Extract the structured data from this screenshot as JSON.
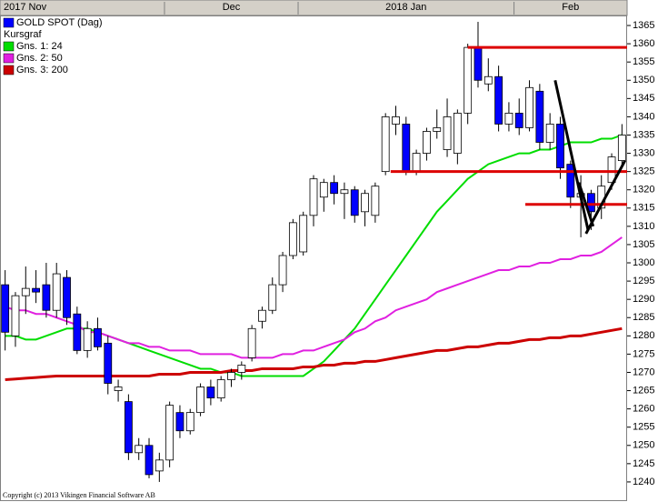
{
  "chart_data": {
    "type": "candlestick",
    "legend_title": "Kursgraf",
    "footer": "Copyright (c) 2013 Vikingen Financial Software AB",
    "categories": [
      "2017 Nov",
      null,
      null,
      null,
      null,
      null,
      null,
      null,
      null,
      null,
      null,
      null,
      null,
      null,
      null,
      null,
      "Dec",
      null,
      null,
      null,
      null,
      null,
      null,
      null,
      null,
      null,
      null,
      null,
      null,
      "2018 Jan",
      null,
      null,
      null,
      null,
      null,
      null,
      null,
      null,
      null,
      null,
      null,
      null,
      null,
      null,
      null,
      null,
      null,
      null,
      null,
      null,
      "Feb",
      null,
      null,
      null,
      null,
      null,
      null,
      null,
      null,
      null,
      null
    ],
    "ylim": [
      1235,
      1367.5
    ],
    "yticks": [
      1240,
      1245,
      1250,
      1255,
      1260,
      1265,
      1270,
      1275,
      1280,
      1285,
      1290,
      1295,
      1300,
      1305,
      1310,
      1315,
      1320,
      1325,
      1330,
      1335,
      1340,
      1345,
      1350,
      1355,
      1360,
      1365
    ],
    "series": [
      {
        "name": "GOLD SPOT (Dag)",
        "type": "candlestick",
        "color": "#0000ff",
        "open": [
          1294,
          1280,
          1291,
          1293,
          1294,
          1287,
          1296,
          1286,
          1276,
          1282,
          1278,
          1265,
          1262,
          1248,
          1250,
          1243,
          1246,
          1259,
          1254,
          1259,
          1266,
          1263,
          1268,
          1270,
          1274,
          1284,
          1287,
          1294,
          1302,
          1303,
          1313,
          1318,
          1322,
          1319,
          1320,
          1314,
          1313,
          1325,
          1338,
          1338,
          1325,
          1330,
          1336,
          1331,
          1330,
          1341,
          1359,
          1349,
          1351,
          1338,
          1341,
          1337,
          1347,
          1333,
          1338,
          1327,
          1318,
          1319,
          1315,
          1322,
          1328
        ],
        "high": [
          1298,
          1292,
          1299,
          1298,
          1300,
          1300,
          1298,
          1288,
          1284,
          1285,
          1280,
          1268,
          1264,
          1252,
          1252,
          1248,
          1262,
          1261,
          1260,
          1267,
          1268,
          1269,
          1271,
          1273,
          1283,
          1288,
          1296,
          1303,
          1312,
          1314,
          1324,
          1323,
          1324,
          1322,
          1321,
          1320,
          1322,
          1341,
          1343,
          1340,
          1331,
          1337,
          1342,
          1345,
          1342,
          1360,
          1366,
          1356,
          1354,
          1344,
          1345,
          1350,
          1349,
          1341,
          1340,
          1328,
          1324,
          1320,
          1324,
          1330,
          1338
        ],
        "low": [
          1276,
          1277,
          1286,
          1289,
          1285,
          1285,
          1283,
          1275,
          1274,
          1276,
          1264,
          1262,
          1246,
          1246,
          1241,
          1240,
          1244,
          1252,
          1253,
          1258,
          1261,
          1262,
          1266,
          1268,
          1273,
          1282,
          1286,
          1292,
          1301,
          1302,
          1310,
          1314,
          1316,
          1312,
          1311,
          1310,
          1311,
          1324,
          1335,
          1324,
          1324,
          1328,
          1334,
          1329,
          1327,
          1338,
          1348,
          1347,
          1336,
          1336,
          1335,
          1336,
          1331,
          1331,
          1323,
          1315,
          1307,
          1309,
          1312,
          1320,
          1326
        ],
        "close": [
          1281,
          1291,
          1293,
          1292,
          1287,
          1297,
          1285,
          1276,
          1282,
          1277,
          1267,
          1266,
          1248,
          1250,
          1242,
          1246,
          1261,
          1254,
          1259,
          1266,
          1263,
          1268,
          1270,
          1272,
          1282,
          1287,
          1294,
          1302,
          1311,
          1313,
          1323,
          1322,
          1319,
          1320,
          1313,
          1319,
          1321,
          1340,
          1340,
          1325,
          1330,
          1336,
          1337,
          1340,
          1341,
          1359,
          1350,
          1351,
          1338,
          1341,
          1337,
          1348,
          1333,
          1338,
          1326,
          1318,
          1319,
          1314,
          1321,
          1329,
          1335
        ]
      },
      {
        "name": "Gns. 1: 24",
        "type": "line",
        "color": "#00dd00",
        "values": [
          1280,
          1280,
          1279,
          1279,
          1280,
          1281,
          1282,
          1282,
          1282,
          1281,
          1280,
          1279,
          1278,
          1277,
          1276,
          1275,
          1274,
          1273,
          1272,
          1271,
          1271,
          1270,
          1270,
          1269,
          1269,
          1269,
          1269,
          1269,
          1269,
          1269,
          1271,
          1273,
          1276,
          1279,
          1282,
          1286,
          1290,
          1294,
          1298,
          1302,
          1306,
          1310,
          1314,
          1317,
          1320,
          1323,
          1325,
          1327,
          1328,
          1329,
          1330,
          1330,
          1331,
          1331,
          1332,
          1333,
          1333,
          1333,
          1334,
          1334,
          1335
        ]
      },
      {
        "name": "Gns. 2: 50",
        "type": "line",
        "color": "#e020e0",
        "values": [
          1288,
          1287,
          1287,
          1286,
          1286,
          1285,
          1284,
          1283,
          1281,
          1281,
          1280,
          1279,
          1278,
          1278,
          1277,
          1277,
          1276,
          1276,
          1276,
          1275,
          1275,
          1275,
          1275,
          1274,
          1274,
          1274,
          1274,
          1275,
          1275,
          1276,
          1276,
          1277,
          1278,
          1279,
          1281,
          1282,
          1284,
          1285,
          1287,
          1288,
          1289,
          1290,
          1292,
          1293,
          1294,
          1295,
          1296,
          1297,
          1298,
          1298,
          1299,
          1299,
          1300,
          1300,
          1301,
          1301,
          1302,
          1302,
          1303,
          1305,
          1307
        ]
      },
      {
        "name": "Gns. 3: 200",
        "type": "line",
        "color": "#cc0000",
        "values": [
          1268,
          1268.2,
          1268.4,
          1268.6,
          1268.8,
          1269,
          1269,
          1269,
          1269,
          1269,
          1269,
          1269,
          1269,
          1269,
          1269,
          1269.5,
          1269.5,
          1269.5,
          1270,
          1270,
          1270,
          1270,
          1270.5,
          1270.5,
          1270.5,
          1271,
          1271,
          1271,
          1271,
          1271.5,
          1271.5,
          1272,
          1272,
          1272.5,
          1272.5,
          1273,
          1273,
          1273.5,
          1274,
          1274.5,
          1275,
          1275.5,
          1276,
          1276,
          1276.5,
          1277,
          1277,
          1277.5,
          1278,
          1278,
          1278.5,
          1279,
          1279,
          1279.5,
          1279.5,
          1280,
          1280,
          1280.5,
          1281,
          1281.5,
          1282
        ]
      }
    ],
    "levels": [
      {
        "value": 1359,
        "x_start": 45,
        "color": "#dd0000"
      },
      {
        "value": 1325,
        "x_start": 37.5,
        "color": "#dd0000"
      },
      {
        "value": 1316,
        "x_start": 50.6,
        "color": "#dd0000"
      }
    ],
    "trend_lines": [
      {
        "x": [
          53.5,
          56.7
        ],
        "y": [
          1350,
          1309
        ],
        "color": "#000000"
      },
      {
        "x": [
          56.5,
          60.3
        ],
        "y": [
          1308,
          1328
        ],
        "color": "#000000"
      },
      {
        "x": [
          55.8,
          57.2
        ],
        "y": [
          1322,
          1310
        ],
        "color": "#000000"
      }
    ]
  }
}
